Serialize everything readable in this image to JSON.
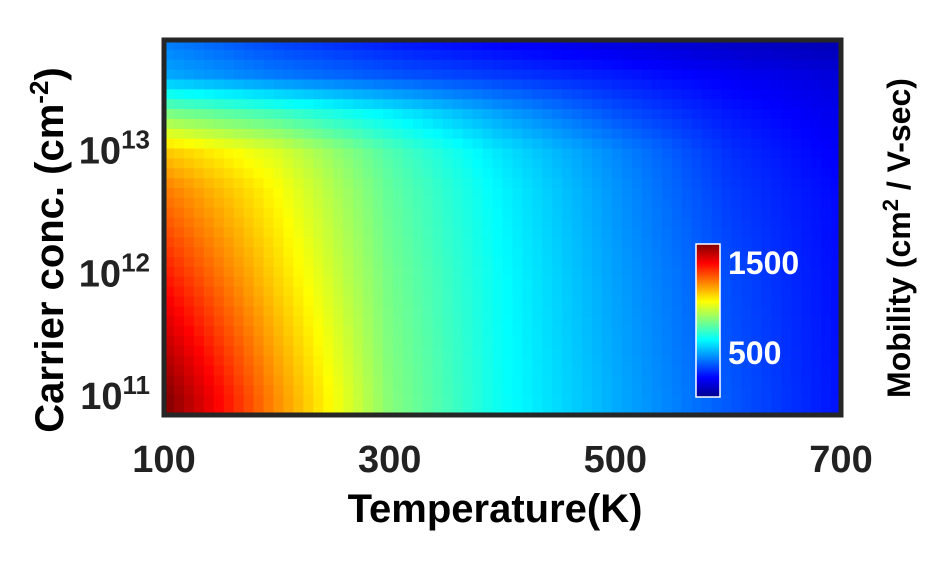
{
  "chart_data": {
    "type": "heatmap",
    "title": "",
    "xlabel": "Temperature(K)",
    "ylabel": "Carrier conc. (cm",
    "ylabel_sup": "-2",
    "ylabel_end": ")",
    "colorbar_label": "Mobility (cm",
    "colorbar_label_sup": "2",
    "colorbar_label_end": " / V-sec)",
    "x_range": [
      100,
      700
    ],
    "y_range": [
      70000000000.0,
      80000000000000.0
    ],
    "y_scale": "log",
    "colormap": "jet",
    "value_range": [
      0,
      1700
    ],
    "x_ticks": [
      {
        "value": 100,
        "label": "100"
      },
      {
        "value": 300,
        "label": "300"
      },
      {
        "value": 500,
        "label": "500"
      },
      {
        "value": 700,
        "label": "700"
      }
    ],
    "y_ticks": [
      {
        "value": 100000000000.0,
        "base": "10",
        "exp": "11"
      },
      {
        "value": 1000000000000.0,
        "base": "10",
        "exp": "12"
      },
      {
        "value": 10000000000000.0,
        "base": "10",
        "exp": "13"
      }
    ],
    "colorbar_ticks": [
      {
        "value": 1500,
        "label": "1500"
      },
      {
        "value": 500,
        "label": "500"
      }
    ],
    "colorbar_placement": "inside lower-right",
    "x": [
      100,
      200,
      300,
      400,
      500,
      600,
      700
    ],
    "y": [
      100000000000.0,
      1000000000000.0,
      5000000000000.0,
      10000000000000.0,
      20000000000000.0,
      40000000000000.0,
      80000000000000.0
    ],
    "values": [
      [
        1700,
        1250,
        860,
        650,
        500,
        360,
        240
      ],
      [
        1450,
        1130,
        830,
        640,
        480,
        340,
        230
      ],
      [
        1280,
        1060,
        800,
        620,
        460,
        310,
        220
      ],
      [
        1150,
        1000,
        770,
        590,
        440,
        290,
        200
      ],
      [
        850,
        750,
        620,
        480,
        350,
        250,
        180
      ],
      [
        500,
        420,
        360,
        310,
        260,
        200,
        150
      ],
      [
        420,
        320,
        250,
        200,
        150,
        110,
        80
      ]
    ]
  }
}
